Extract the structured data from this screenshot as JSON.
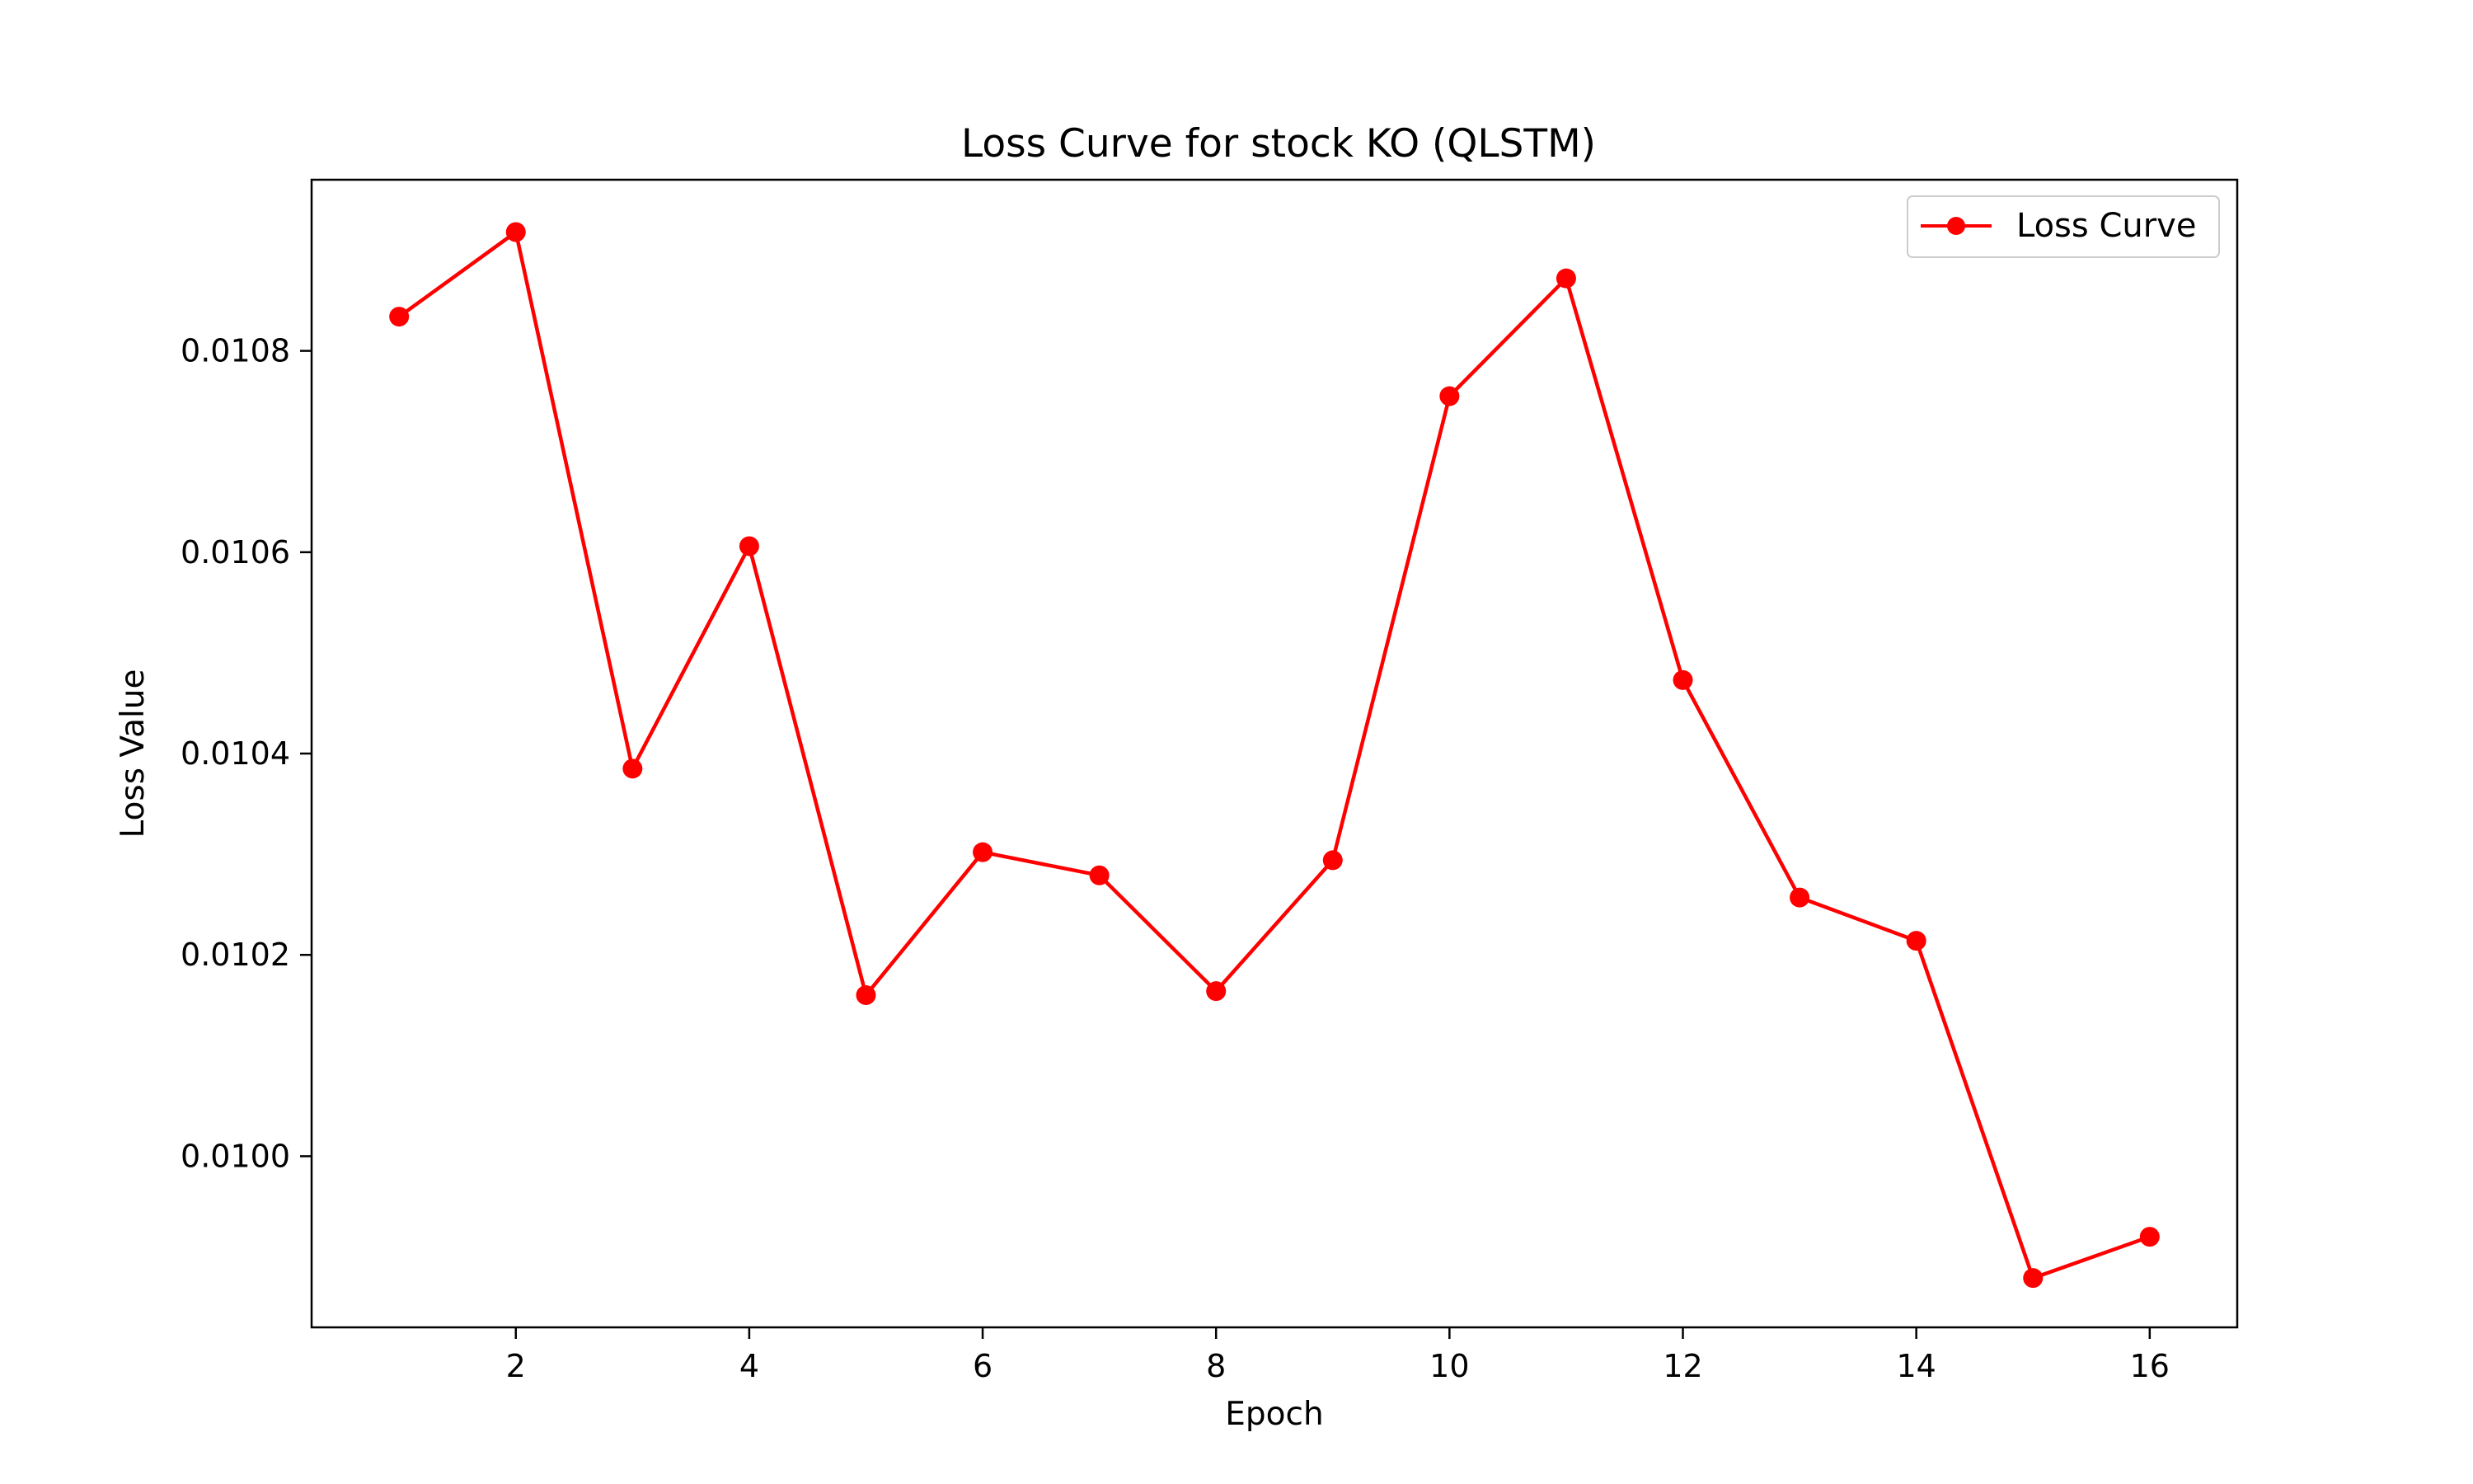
{
  "chart_data": {
    "type": "line",
    "title": "Loss Curve for stock KO (QLSTM)",
    "xlabel": "Epoch",
    "ylabel": "Loss Value",
    "xlim": [
      0.25,
      16.75
    ],
    "ylim": [
      0.00983,
      0.01097
    ],
    "xticks": [
      2,
      4,
      6,
      8,
      10,
      12,
      14,
      16
    ],
    "xtick_labels": [
      "2",
      "4",
      "6",
      "8",
      "10",
      "12",
      "14",
      "16"
    ],
    "yticks": [
      0.01,
      0.0102,
      0.0104,
      0.0106,
      0.0108
    ],
    "ytick_labels": [
      "0.0100",
      "0.0102",
      "0.0104",
      "0.0106",
      "0.0108"
    ],
    "grid": false,
    "legend": {
      "position": "upper right",
      "entries": [
        "Loss Curve"
      ]
    },
    "color": "#ff0000",
    "series": [
      {
        "name": "Loss Curve",
        "x": [
          1,
          2,
          3,
          4,
          5,
          6,
          7,
          8,
          9,
          10,
          11,
          12,
          13,
          14,
          15,
          16
        ],
        "y": [
          0.010834,
          0.010918,
          0.010385,
          0.010606,
          0.01016,
          0.010302,
          0.010279,
          0.010164,
          0.010294,
          0.010755,
          0.010872,
          0.010473,
          0.010257,
          0.010214,
          0.009879,
          0.00992
        ],
        "marker": "circle"
      }
    ]
  }
}
